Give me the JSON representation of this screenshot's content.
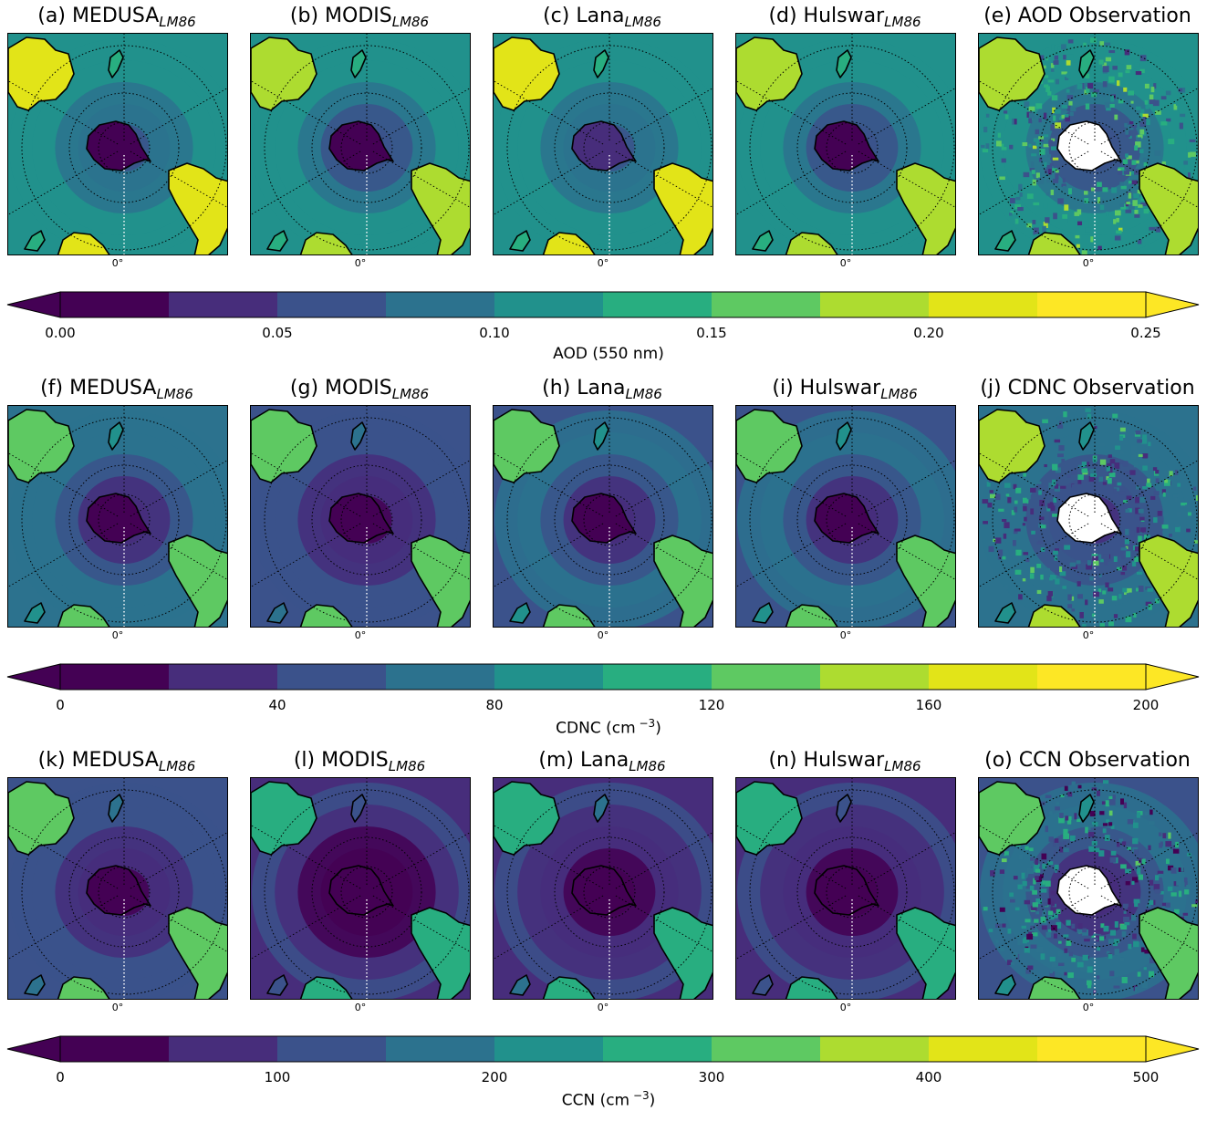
{
  "rows": [
    {
      "panels": [
        {
          "prefix": "(a) MEDUSA",
          "sub": "LM86",
          "kind": "model",
          "level": 0.42
        },
        {
          "prefix": "(b) MODIS",
          "sub": "LM86",
          "kind": "model",
          "level": 0.4
        },
        {
          "prefix": "(c) Lana",
          "sub": "LM86",
          "kind": "model",
          "level": 0.44
        },
        {
          "prefix": "(d) Hulswar",
          "sub": "LM86",
          "kind": "model",
          "level": 0.4
        },
        {
          "prefix": "(e) AOD Observation",
          "sub": "",
          "kind": "obs",
          "level": 0.4
        }
      ],
      "meridian_label": "0°",
      "colorbar": {
        "label": "AOD (550 nm)",
        "unit_sup": "",
        "label_tail": "",
        "ticks": [
          "0.00",
          "0.05",
          "0.10",
          "0.15",
          "0.20",
          "0.25"
        ]
      }
    },
    {
      "panels": [
        {
          "prefix": "(f) MEDUSA",
          "sub": "LM86",
          "kind": "model",
          "level": 0.3
        },
        {
          "prefix": "(g) MODIS",
          "sub": "LM86",
          "kind": "model",
          "level": 0.22
        },
        {
          "prefix": "(h) Lana",
          "sub": "LM86",
          "kind": "model",
          "level": 0.28
        },
        {
          "prefix": "(i) Hulswar",
          "sub": "LM86",
          "kind": "model",
          "level": 0.28
        },
        {
          "prefix": "(j) CDNC Observation",
          "sub": "",
          "kind": "obs",
          "level": 0.32
        }
      ],
      "meridian_label": "0°",
      "colorbar": {
        "label": "CDNC (cm",
        "unit_sup": "−3",
        "label_tail": ")",
        "ticks": [
          "0",
          "40",
          "80",
          "120",
          "160",
          "200"
        ]
      }
    },
    {
      "panels": [
        {
          "prefix": "(k) MEDUSA",
          "sub": "LM86",
          "kind": "model",
          "level": 0.22
        },
        {
          "prefix": "(l) MODIS",
          "sub": "LM86",
          "kind": "model",
          "level": 0.15
        },
        {
          "prefix": "(m) Lana",
          "sub": "LM86",
          "kind": "model",
          "level": 0.18
        },
        {
          "prefix": "(n) Hulswar",
          "sub": "LM86",
          "kind": "model",
          "level": 0.17
        },
        {
          "prefix": "(o) CCN Observation",
          "sub": "",
          "kind": "obs",
          "level": 0.28
        }
      ],
      "meridian_label": "0°",
      "colorbar": {
        "label": "CCN (cm",
        "unit_sup": "−3",
        "label_tail": ")",
        "ticks": [
          "0",
          "100",
          "200",
          "300",
          "400",
          "500"
        ]
      }
    }
  ],
  "colormap": [
    "#440154",
    "#472d7b",
    "#3b528b",
    "#2c728e",
    "#21918c",
    "#28ae80",
    "#5ec962",
    "#addc30",
    "#e2e418",
    "#fde725"
  ],
  "colormap_extremes": {
    "under": "#440154",
    "over": "#fde725"
  }
}
